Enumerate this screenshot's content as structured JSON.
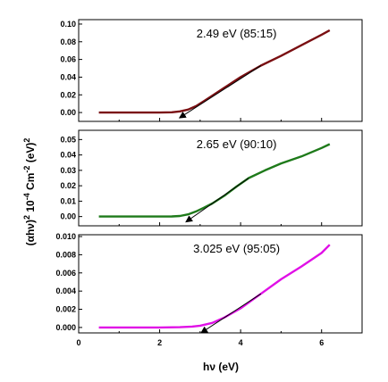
{
  "chart_data": {
    "type": "line",
    "x_axis": {
      "label_main": "hν",
      "label_unit": "(eV)",
      "range": [
        0,
        7
      ],
      "ticks": [
        "0",
        "2",
        "4",
        "6"
      ],
      "tick_values": [
        0,
        2,
        4,
        6
      ]
    },
    "y_axis": {
      "label_parts": {
        "open": "(",
        "alpha": "α",
        "h": "h",
        "nu": "ν",
        "close": ")",
        "sup2a": "2",
        "ten": " 10",
        "sup_neg4": "-4",
        "cm": " Cm",
        "sup_neg2": "-2",
        "ev": " (eV)",
        "sup2b": "2"
      }
    },
    "panels": [
      {
        "annotation": "2.49 eV (85:15)",
        "color": "#7a0f12",
        "ylim": [
          -0.01,
          0.105
        ],
        "ticks": [
          "0.00",
          "0.02",
          "0.04",
          "0.06",
          "0.08",
          "0.10"
        ],
        "tick_values": [
          0,
          0.02,
          0.04,
          0.06,
          0.08,
          0.1
        ],
        "x": [
          0.5,
          1.0,
          1.5,
          2.0,
          2.3,
          2.5,
          2.7,
          2.9,
          3.1,
          3.3,
          3.6,
          4.0,
          4.5,
          5.0,
          5.5,
          6.0,
          6.2
        ],
        "y": [
          0.0,
          0.0,
          0.0,
          0.0,
          0.0003,
          0.0013,
          0.0033,
          0.0073,
          0.013,
          0.019,
          0.028,
          0.04,
          0.053,
          0.064,
          0.076,
          0.088,
          0.093
        ],
        "tangent": {
          "x0": 2.49,
          "x1": 4.5
        }
      },
      {
        "annotation": "2.65 eV (90:10)",
        "color": "#1e7a1a",
        "ylim": [
          -0.006,
          0.056
        ],
        "ticks": [
          "0.00",
          "0.01",
          "0.02",
          "0.03",
          "0.04",
          "0.05"
        ],
        "tick_values": [
          0,
          0.01,
          0.02,
          0.03,
          0.04,
          0.05
        ],
        "x": [
          0.5,
          1.0,
          1.5,
          2.0,
          2.3,
          2.5,
          2.7,
          2.9,
          3.1,
          3.3,
          3.6,
          3.9,
          4.2,
          4.6,
          5.0,
          5.5,
          6.0,
          6.2
        ],
        "y": [
          0.0,
          0.0,
          0.0,
          0.0,
          0.0001,
          0.0004,
          0.0014,
          0.0033,
          0.0058,
          0.0085,
          0.0135,
          0.0195,
          0.025,
          0.03,
          0.0345,
          0.039,
          0.0445,
          0.047
        ],
        "tangent": {
          "x0": 2.65,
          "x1": 4.2
        }
      },
      {
        "annotation": "3.025 eV (95:05)",
        "color": "#e010e6",
        "ylim": [
          -0.0006,
          0.0102
        ],
        "ticks": [
          "0.000",
          "0.002",
          "0.004",
          "0.006",
          "0.008",
          "0.010"
        ],
        "tick_values": [
          0,
          0.002,
          0.004,
          0.006,
          0.008,
          0.01
        ],
        "x": [
          0.5,
          1.0,
          1.5,
          2.0,
          2.5,
          2.8,
          3.0,
          3.3,
          3.6,
          4.0,
          4.5,
          5.0,
          5.5,
          6.0,
          6.2
        ],
        "y": [
          0.0,
          0.0,
          0.0,
          0.0,
          3e-05,
          0.0001,
          0.0002,
          0.0005,
          0.0011,
          0.0021,
          0.0037,
          0.0053,
          0.0067,
          0.0082,
          0.0091
        ],
        "tangent": {
          "x0": 3.025,
          "x1": 4.5
        }
      }
    ]
  }
}
